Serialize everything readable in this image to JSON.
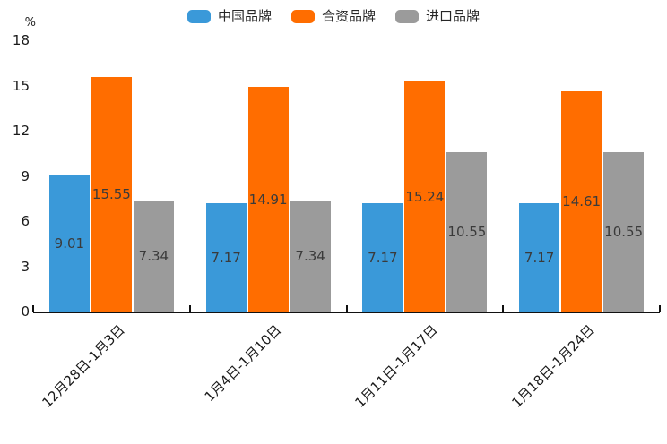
{
  "chart_data": {
    "type": "bar",
    "title": "",
    "unit_label": "%",
    "categories": [
      "12月28日-1月3日",
      "1月4日-1月10日",
      "1月11日-1月17日",
      "1月18日-1月24日"
    ],
    "series": [
      {
        "name": "中国品牌",
        "color": "#3A99D9",
        "values": [
          9.01,
          7.17,
          7.17,
          7.17
        ]
      },
      {
        "name": "合资品牌",
        "color": "#FF6D00",
        "values": [
          15.55,
          14.91,
          15.24,
          14.61
        ]
      },
      {
        "name": "进口品牌",
        "color": "#9B9B9B",
        "values": [
          7.34,
          7.34,
          10.55,
          10.55
        ]
      }
    ],
    "ylim": [
      0,
      18
    ],
    "yticks": [
      0,
      3,
      6,
      9,
      12,
      15,
      18
    ],
    "grid": false,
    "legend_position": "top",
    "value_labels": "inside-center",
    "value_label_color": "#3a3a3a",
    "axis_color": "#111111",
    "background_color": "#ffffff"
  }
}
